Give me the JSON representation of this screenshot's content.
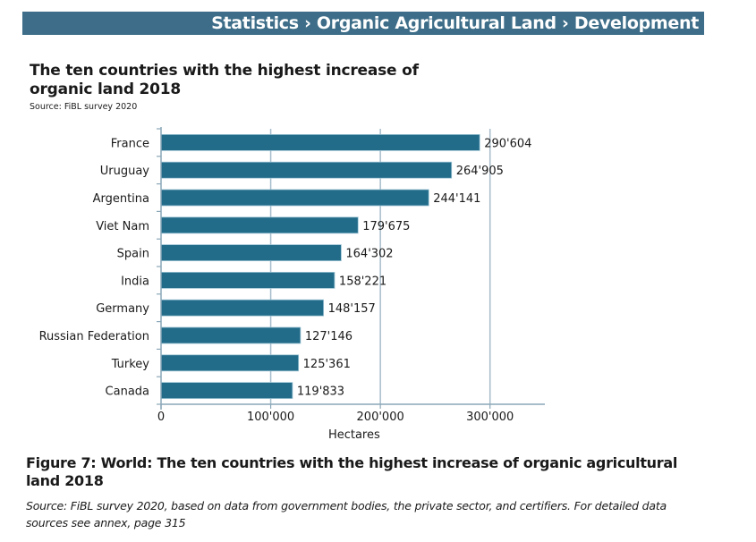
{
  "header": {
    "breadcrumb": "Statistics › Organic Agricultural Land › Development"
  },
  "chart_heading": {
    "title": "The ten countries with the highest increase of organic land 2018",
    "source": "Source: FiBL survey 2020"
  },
  "colors": {
    "header_bg": "#3d6d88",
    "bar": "#226c8a",
    "bar_edge": "#9cc3d3",
    "axis": "#8aa7b8",
    "gridline": "#a7bccb"
  },
  "chart_data": {
    "type": "bar",
    "orientation": "horizontal",
    "title": "The ten countries with the highest increase of organic land 2018",
    "subtitle": "Source: FiBL survey 2020",
    "categories": [
      "France",
      "Uruguay",
      "Argentina",
      "Viet Nam",
      "Spain",
      "India",
      "Germany",
      "Russian Federation",
      "Turkey",
      "Canada"
    ],
    "values": [
      290604,
      264905,
      244141,
      179675,
      164302,
      158221,
      148157,
      127146,
      125361,
      119833
    ],
    "value_labels": [
      "290'604",
      "264'905",
      "244'141",
      "179'675",
      "164'302",
      "158'221",
      "148'157",
      "127'146",
      "125'361",
      "119'833"
    ],
    "xlabel": "Hectares",
    "ylabel": "",
    "xlim": [
      0,
      350000
    ],
    "xticks": [
      0,
      100000,
      200000,
      300000
    ],
    "xtick_labels": [
      "0",
      "100'000",
      "200'000",
      "300'000"
    ],
    "grid": "vertical",
    "legend": "none"
  },
  "figure": {
    "caption": "Figure 7: World: The ten countries with the highest increase of organic agricultural land 2018",
    "source_prefix": "Source: FiBL survey 2020",
    "source_text": ", based on data from government bodies, the private sector, and certifiers. For detailed data sources see annex, page 315"
  }
}
